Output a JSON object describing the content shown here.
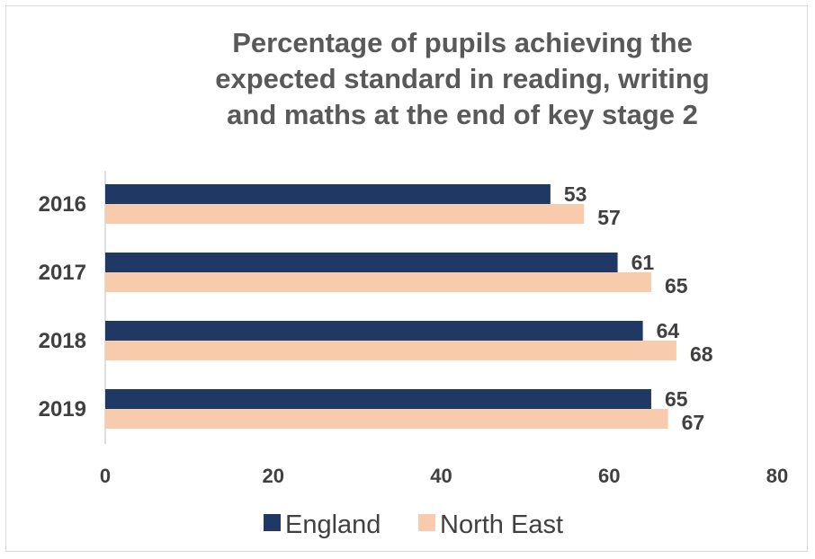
{
  "chart_data": {
    "type": "bar",
    "orientation": "horizontal",
    "title_lines": [
      "Percentage of pupils achieving the",
      "expected standard in reading, writing",
      "and maths at the end of key stage 2"
    ],
    "categories": [
      "2016",
      "2017",
      "2018",
      "2019"
    ],
    "series": [
      {
        "name": "England",
        "values": [
          53,
          61,
          64,
          65
        ],
        "color": "#1f3864"
      },
      {
        "name": "North East",
        "values": [
          57,
          65,
          68,
          67
        ],
        "color": "#f8cbad"
      }
    ],
    "xlim": [
      0,
      80
    ],
    "xticks": [
      "0",
      "20",
      "40",
      "60",
      "80"
    ],
    "grid": false,
    "data_labels": true,
    "legend_position": "bottom"
  }
}
